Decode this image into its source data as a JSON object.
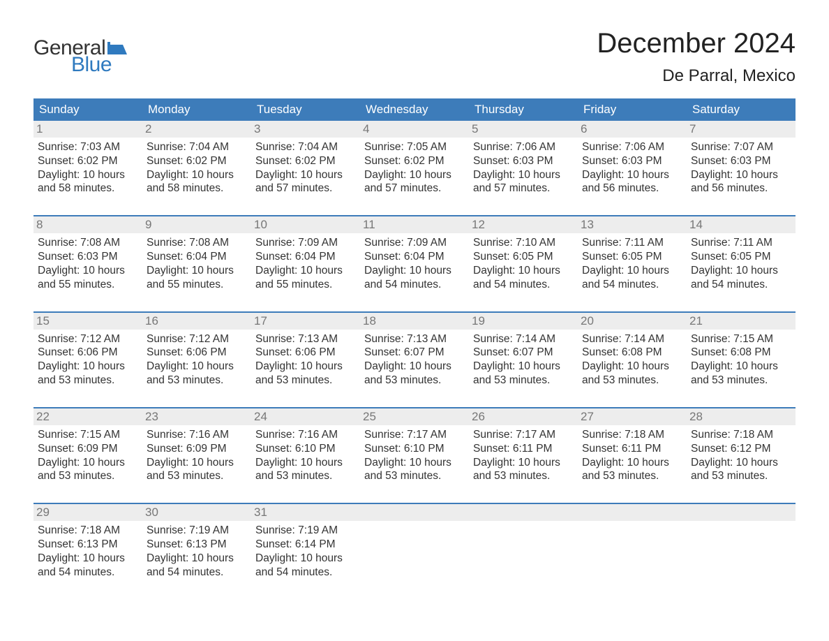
{
  "brand": {
    "word1": "General",
    "word2": "Blue",
    "word1_color": "#333333",
    "word2_color": "#2f7abf",
    "flag_color": "#2f7abf"
  },
  "title": "December 2024",
  "location": "De Parral, Mexico",
  "colors": {
    "header_bg": "#3d7cba",
    "header_text": "#ffffff",
    "daynum_bg": "#ededed",
    "daynum_text": "#777777",
    "body_text": "#333333",
    "background": "#ffffff",
    "week_border": "#3d7cba"
  },
  "typography": {
    "title_fontsize": 40,
    "location_fontsize": 24,
    "dow_fontsize": 17,
    "daynum_fontsize": 17,
    "cell_fontsize": 15.5,
    "logo_fontsize": 30
  },
  "days_of_week": [
    "Sunday",
    "Monday",
    "Tuesday",
    "Wednesday",
    "Thursday",
    "Friday",
    "Saturday"
  ],
  "labels": {
    "sunrise": "Sunrise:",
    "sunset": "Sunset:",
    "daylight": "Daylight:"
  },
  "weeks": [
    [
      {
        "n": 1,
        "sunrise": "7:03 AM",
        "sunset": "6:02 PM",
        "daylight": "10 hours and 58 minutes."
      },
      {
        "n": 2,
        "sunrise": "7:04 AM",
        "sunset": "6:02 PM",
        "daylight": "10 hours and 58 minutes."
      },
      {
        "n": 3,
        "sunrise": "7:04 AM",
        "sunset": "6:02 PM",
        "daylight": "10 hours and 57 minutes."
      },
      {
        "n": 4,
        "sunrise": "7:05 AM",
        "sunset": "6:02 PM",
        "daylight": "10 hours and 57 minutes."
      },
      {
        "n": 5,
        "sunrise": "7:06 AM",
        "sunset": "6:03 PM",
        "daylight": "10 hours and 57 minutes."
      },
      {
        "n": 6,
        "sunrise": "7:06 AM",
        "sunset": "6:03 PM",
        "daylight": "10 hours and 56 minutes."
      },
      {
        "n": 7,
        "sunrise": "7:07 AM",
        "sunset": "6:03 PM",
        "daylight": "10 hours and 56 minutes."
      }
    ],
    [
      {
        "n": 8,
        "sunrise": "7:08 AM",
        "sunset": "6:03 PM",
        "daylight": "10 hours and 55 minutes."
      },
      {
        "n": 9,
        "sunrise": "7:08 AM",
        "sunset": "6:04 PM",
        "daylight": "10 hours and 55 minutes."
      },
      {
        "n": 10,
        "sunrise": "7:09 AM",
        "sunset": "6:04 PM",
        "daylight": "10 hours and 55 minutes."
      },
      {
        "n": 11,
        "sunrise": "7:09 AM",
        "sunset": "6:04 PM",
        "daylight": "10 hours and 54 minutes."
      },
      {
        "n": 12,
        "sunrise": "7:10 AM",
        "sunset": "6:05 PM",
        "daylight": "10 hours and 54 minutes."
      },
      {
        "n": 13,
        "sunrise": "7:11 AM",
        "sunset": "6:05 PM",
        "daylight": "10 hours and 54 minutes."
      },
      {
        "n": 14,
        "sunrise": "7:11 AM",
        "sunset": "6:05 PM",
        "daylight": "10 hours and 54 minutes."
      }
    ],
    [
      {
        "n": 15,
        "sunrise": "7:12 AM",
        "sunset": "6:06 PM",
        "daylight": "10 hours and 53 minutes."
      },
      {
        "n": 16,
        "sunrise": "7:12 AM",
        "sunset": "6:06 PM",
        "daylight": "10 hours and 53 minutes."
      },
      {
        "n": 17,
        "sunrise": "7:13 AM",
        "sunset": "6:06 PM",
        "daylight": "10 hours and 53 minutes."
      },
      {
        "n": 18,
        "sunrise": "7:13 AM",
        "sunset": "6:07 PM",
        "daylight": "10 hours and 53 minutes."
      },
      {
        "n": 19,
        "sunrise": "7:14 AM",
        "sunset": "6:07 PM",
        "daylight": "10 hours and 53 minutes."
      },
      {
        "n": 20,
        "sunrise": "7:14 AM",
        "sunset": "6:08 PM",
        "daylight": "10 hours and 53 minutes."
      },
      {
        "n": 21,
        "sunrise": "7:15 AM",
        "sunset": "6:08 PM",
        "daylight": "10 hours and 53 minutes."
      }
    ],
    [
      {
        "n": 22,
        "sunrise": "7:15 AM",
        "sunset": "6:09 PM",
        "daylight": "10 hours and 53 minutes."
      },
      {
        "n": 23,
        "sunrise": "7:16 AM",
        "sunset": "6:09 PM",
        "daylight": "10 hours and 53 minutes."
      },
      {
        "n": 24,
        "sunrise": "7:16 AM",
        "sunset": "6:10 PM",
        "daylight": "10 hours and 53 minutes."
      },
      {
        "n": 25,
        "sunrise": "7:17 AM",
        "sunset": "6:10 PM",
        "daylight": "10 hours and 53 minutes."
      },
      {
        "n": 26,
        "sunrise": "7:17 AM",
        "sunset": "6:11 PM",
        "daylight": "10 hours and 53 minutes."
      },
      {
        "n": 27,
        "sunrise": "7:18 AM",
        "sunset": "6:11 PM",
        "daylight": "10 hours and 53 minutes."
      },
      {
        "n": 28,
        "sunrise": "7:18 AM",
        "sunset": "6:12 PM",
        "daylight": "10 hours and 53 minutes."
      }
    ],
    [
      {
        "n": 29,
        "sunrise": "7:18 AM",
        "sunset": "6:13 PM",
        "daylight": "10 hours and 54 minutes."
      },
      {
        "n": 30,
        "sunrise": "7:19 AM",
        "sunset": "6:13 PM",
        "daylight": "10 hours and 54 minutes."
      },
      {
        "n": 31,
        "sunrise": "7:19 AM",
        "sunset": "6:14 PM",
        "daylight": "10 hours and 54 minutes."
      },
      null,
      null,
      null,
      null
    ]
  ]
}
